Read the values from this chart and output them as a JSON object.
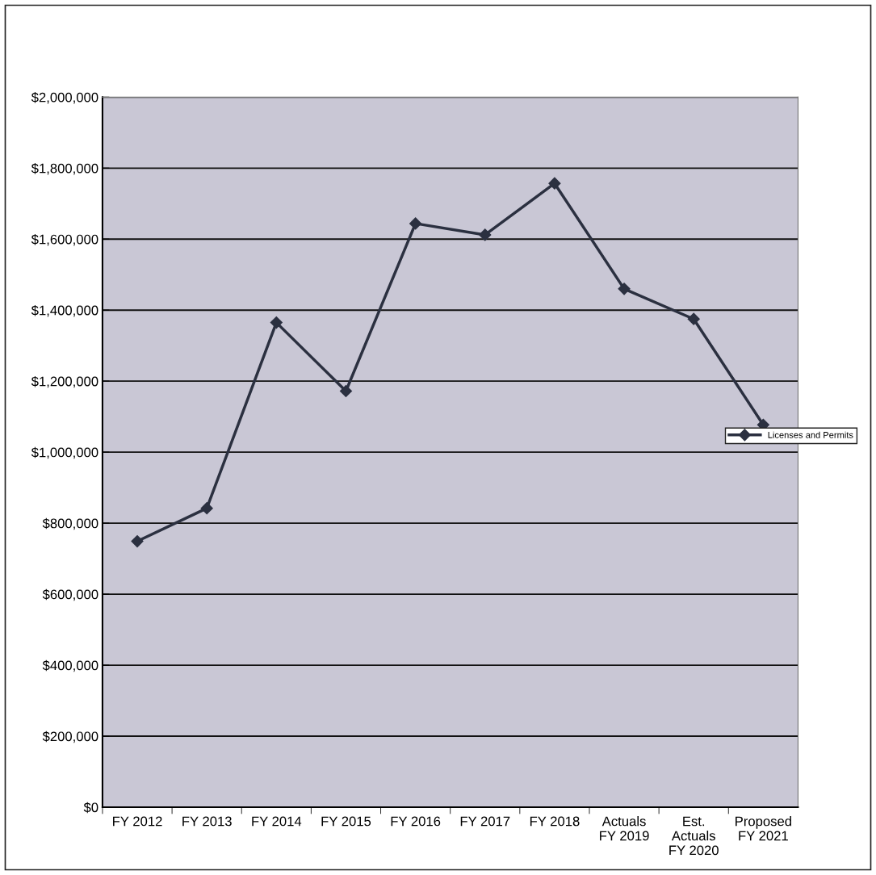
{
  "chart_data": {
    "type": "line",
    "categories": [
      "FY 2012",
      "FY 2013",
      "FY 2014",
      "FY 2015",
      "FY 2016",
      "FY 2017",
      "FY 2018",
      "Actuals\nFY 2019",
      "Est.\nActuals\nFY 2020",
      "Proposed\nFY 2021"
    ],
    "series": [
      {
        "name": "Licenses and Permits",
        "color": "#2b3040",
        "values": [
          749000,
          842000,
          1365000,
          1172000,
          1644000,
          1612000,
          1757000,
          1460000,
          1375000,
          1077000
        ]
      }
    ],
    "ylim": [
      0,
      2000000
    ],
    "yticks": [
      {
        "value": 0,
        "label": "$0"
      },
      {
        "value": 200000,
        "label": "$200,000"
      },
      {
        "value": 400000,
        "label": "$400,000"
      },
      {
        "value": 600000,
        "label": "$600,000"
      },
      {
        "value": 800000,
        "label": "$800,000"
      },
      {
        "value": 1000000,
        "label": "$1,000,000"
      },
      {
        "value": 1200000,
        "label": "$1,200,000"
      },
      {
        "value": 1400000,
        "label": "$1,400,000"
      },
      {
        "value": 1600000,
        "label": "$1,600,000"
      },
      {
        "value": 1800000,
        "label": "$1,800,000"
      },
      {
        "value": 2000000,
        "label": "$2,000,000"
      }
    ],
    "grid": "y",
    "legend": "right",
    "marker": "diamond",
    "line_style": "solid"
  }
}
